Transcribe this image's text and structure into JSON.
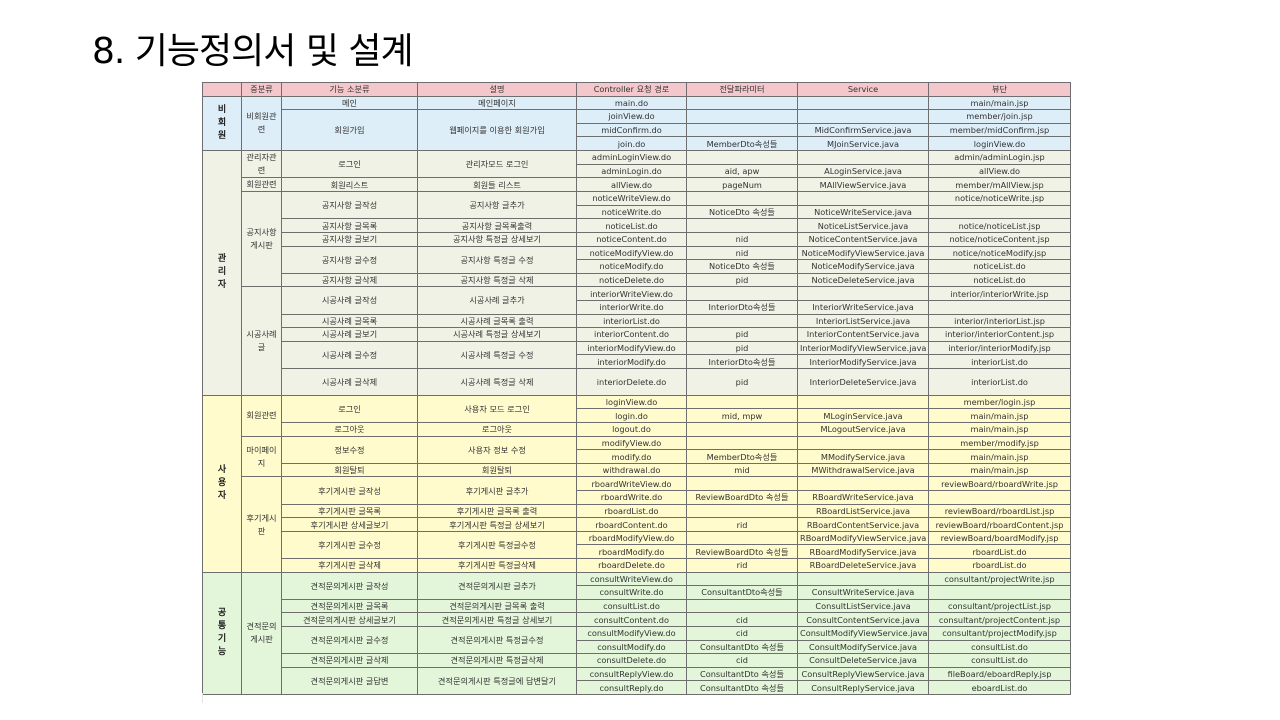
{
  "title": "8. 기능정의서 및 설계",
  "headers": [
    "",
    "중분류",
    "기능 소분류",
    "설명",
    "Controller 요청 경로",
    "전달파라미터",
    "Service",
    "뷰단"
  ],
  "colors": {
    "header": "#f4c7cc",
    "비회원": "#deeef8",
    "관리자": "#f1f2e6",
    "사용자": "#fffbcc",
    "공통기능": "#e3f6d9"
  },
  "groups": [
    {
      "label": "비회원",
      "color": "#deeef8",
      "subs": [
        {
          "label": "비회원관련",
          "funcs": [
            {
              "name": "메인",
              "desc": "메인페이지",
              "reqs": [
                {
                  "c": "main.do",
                  "p": "",
                  "s": "",
                  "v": "main/main.jsp"
                }
              ]
            },
            {
              "name": "회원가입",
              "desc": "웹페이지를 이용한 회원가입",
              "reqs": [
                {
                  "c": "joinView.do",
                  "p": "",
                  "s": "",
                  "v": "member/join.jsp"
                },
                {
                  "c": "midConfirm.do",
                  "p": "",
                  "s": "MidConfirmService.java",
                  "v": "member/midConfirm.jsp"
                },
                {
                  "c": "join.do",
                  "p": "MemberDto속성들",
                  "s": "MJoinService.java",
                  "v": "loginView.do"
                }
              ]
            }
          ]
        }
      ]
    },
    {
      "label": "관리자",
      "color": "#f1f2e6",
      "subs": [
        {
          "label": "관리자관련",
          "funcs": [
            {
              "name": "로그인",
              "desc": "관리자모드 로그인",
              "reqs": [
                {
                  "c": "adminLoginView.do",
                  "p": "",
                  "s": "",
                  "v": "admin/adminLogin.jsp"
                },
                {
                  "c": "adminLogin.do",
                  "p": "aid, apw",
                  "s": "ALoginService.java",
                  "v": "allView.do"
                }
              ]
            }
          ]
        },
        {
          "label": "회원관련",
          "funcs": [
            {
              "name": "회원리스트",
              "desc": "회원들 리스트",
              "reqs": [
                {
                  "c": "allView.do",
                  "p": "pageNum",
                  "s": "MAllViewService.java",
                  "v": "member/mAllView.jsp"
                }
              ]
            }
          ]
        },
        {
          "label": "공지사항게시판",
          "funcs": [
            {
              "name": "공지사항 글작성",
              "desc": "공지사항 글추가",
              "reqs": [
                {
                  "c": "noticeWriteView.do",
                  "p": "",
                  "s": "",
                  "v": "notice/noticeWrite.jsp"
                },
                {
                  "c": "noticeWrite.do",
                  "p": "NoticeDto 속성들",
                  "s": "NoticeWriteService.java",
                  "v": ""
                }
              ]
            },
            {
              "name": "공지사항 글목록",
              "desc": "공지사항 글목록출력",
              "reqs": [
                {
                  "c": "noticeList.do",
                  "p": "",
                  "s": "NoticeListService.java",
                  "v": "notice/noticeList.jsp"
                }
              ]
            },
            {
              "name": "공지사항 글보기",
              "desc": "공지사항 특정글 상세보기",
              "reqs": [
                {
                  "c": "noticeContent.do",
                  "p": "nid",
                  "s": "NoticeContentService.java",
                  "v": "notice/noticeContent.jsp"
                }
              ]
            },
            {
              "name": "공지사항 글수정",
              "desc": "공지사항 특정글 수정",
              "reqs": [
                {
                  "c": "noticeModifyView.do",
                  "p": "nid",
                  "s": "NoticeModifyViewService.java",
                  "v": "notice/noticeModify.jsp"
                },
                {
                  "c": "noticeModify.do",
                  "p": "NoticeDto 속성들",
                  "s": "NoticeModifyService.java",
                  "v": "noticeList.do"
                }
              ]
            },
            {
              "name": "공지사항 글삭제",
              "desc": "공지사항 특정글 삭제",
              "reqs": [
                {
                  "c": "noticeDelete.do",
                  "p": "pid",
                  "s": "NoticeDeleteService.java",
                  "v": "noticeList.do"
                }
              ]
            }
          ]
        },
        {
          "label": "시공사례글",
          "funcs": [
            {
              "name": "시공사례 글작성",
              "desc": "시공사례 글추가",
              "reqs": [
                {
                  "c": "interiorWriteView.do",
                  "p": "",
                  "s": "",
                  "v": "interior/interiorWrite.jsp"
                },
                {
                  "c": "interiorWrite.do",
                  "p": "InteriorDto속성들",
                  "s": "InteriorWriteService.java",
                  "v": ""
                }
              ]
            },
            {
              "name": "시공사례 글목록",
              "desc": "시공사례 글목록 출력",
              "reqs": [
                {
                  "c": "interiorList.do",
                  "p": "",
                  "s": "InteriorListService.java",
                  "v": "interior/interiorList.jsp"
                }
              ]
            },
            {
              "name": "시공사례 글보기",
              "desc": "시공사례 특정글 상세보기",
              "reqs": [
                {
                  "c": "interiorContent.do",
                  "p": "pid",
                  "s": "InteriorContentService.java",
                  "v": "interior/interiorContent.jsp"
                }
              ]
            },
            {
              "name": "시공사례 글수정",
              "desc": "시공사례 특정글 수정",
              "reqs": [
                {
                  "c": "interiorModifyView.do",
                  "p": "pid",
                  "s": "InteriorModifyViewService.java",
                  "v": "interior/interiorModify.jsp"
                },
                {
                  "c": "interiorModify.do",
                  "p": "InteriorDto속성들",
                  "s": "InteriorModifyService.java",
                  "v": "interiorList.do"
                }
              ]
            },
            {
              "name": "시공사례 글삭제",
              "desc": "시공사례 특정글 삭제",
              "reqs": [
                {
                  "c": "interiorDelete.do",
                  "p": "pid",
                  "s": "InteriorDeleteService.java",
                  "v": "interiorList.do"
                }
              ]
            }
          ]
        }
      ]
    },
    {
      "label": "사용자",
      "color": "#fffbcc",
      "subs": [
        {
          "label": "회원관련",
          "funcs": [
            {
              "name": "로그인",
              "desc": "사용자 모드 로그인",
              "reqs": [
                {
                  "c": "loginView.do",
                  "p": "",
                  "s": "",
                  "v": "member/login.jsp"
                },
                {
                  "c": "login.do",
                  "p": "mid, mpw",
                  "s": "MLoginService.java",
                  "v": "main/main.jsp"
                }
              ]
            },
            {
              "name": "로그아웃",
              "desc": "로그아웃",
              "reqs": [
                {
                  "c": "logout.do",
                  "p": "",
                  "s": "MLogoutService.java",
                  "v": "main/main.jsp"
                }
              ]
            }
          ]
        },
        {
          "label": "마이페이지",
          "funcs": [
            {
              "name": "정보수정",
              "desc": "사용자 정보 수정",
              "reqs": [
                {
                  "c": "modifyView.do",
                  "p": "",
                  "s": "",
                  "v": "member/modify.jsp"
                },
                {
                  "c": "modify.do",
                  "p": "MemberDto속성들",
                  "s": "MModifyService.java",
                  "v": "main/main.jsp"
                }
              ]
            },
            {
              "name": "회원탈퇴",
              "desc": "회원탈퇴",
              "reqs": [
                {
                  "c": "withdrawal.do",
                  "p": "mid",
                  "s": "MWithdrawalService.java",
                  "v": "main/main.jsp"
                }
              ]
            }
          ]
        },
        {
          "label": "후기게시판",
          "funcs": [
            {
              "name": "후기게시판 글작성",
              "desc": "후기게시판 글추가",
              "reqs": [
                {
                  "c": "rboardWriteView.do",
                  "p": "",
                  "s": "",
                  "v": "reviewBoard/rboardWrite.jsp"
                },
                {
                  "c": "rboardWrite.do",
                  "p": "ReviewBoardDto 속성들",
                  "s": "RBoardWriteService.java",
                  "v": ""
                }
              ]
            },
            {
              "name": "후기게시판 글목록",
              "desc": "후기게시판 글목록 출력",
              "reqs": [
                {
                  "c": "rboardList.do",
                  "p": "",
                  "s": "RBoardListService.java",
                  "v": "reviewBoard/rboardList.jsp"
                }
              ]
            },
            {
              "name": "후기게시판 상세글보기",
              "desc": "후기게시판 특정글 상세보기",
              "reqs": [
                {
                  "c": "rboardContent.do",
                  "p": "rid",
                  "s": "RBoardContentService.java",
                  "v": "reviewBoard/rboardContent.jsp"
                }
              ]
            },
            {
              "name": "후기게시판 글수정",
              "desc": "후기게시판 특정글수정",
              "reqs": [
                {
                  "c": "rboardModifyView.do",
                  "p": "",
                  "s": "RBoardModifyViewService.java",
                  "v": "reviewBoard/boardModify.jsp"
                },
                {
                  "c": "rboardModify.do",
                  "p": "ReviewBoardDto 속성들",
                  "s": "RBoardModifyService.java",
                  "v": "rboardList.do"
                }
              ]
            },
            {
              "name": "후기게시판 글삭제",
              "desc": "후기게시판 특정글삭제",
              "reqs": [
                {
                  "c": "rboardDelete.do",
                  "p": "rid",
                  "s": "RBoardDeleteService.java",
                  "v": "rboardList.do"
                }
              ]
            }
          ]
        }
      ]
    },
    {
      "label": "공통기능",
      "color": "#e3f6d9",
      "subs": [
        {
          "label": "견적문의게시판",
          "funcs": [
            {
              "name": "견적문의게시판 글작성",
              "desc": "견적문의게시판 글추가",
              "reqs": [
                {
                  "c": "consultWriteView.do",
                  "p": "",
                  "s": "",
                  "v": "consultant/projectWrite.jsp"
                },
                {
                  "c": "consultWrite.do",
                  "p": "ConsultantDto속성들",
                  "s": "ConsultWriteService.java",
                  "v": ""
                }
              ]
            },
            {
              "name": "견적문의게시판 글목록",
              "desc": "견적문의게시판 글목록 출력",
              "reqs": [
                {
                  "c": "consultList.do",
                  "p": "",
                  "s": "ConsultListService.java",
                  "v": "consultant/projectList.jsp"
                }
              ]
            },
            {
              "name": "견적문의게시판 상세글보기",
              "desc": "견적문의게시판 특정글 상세보기",
              "reqs": [
                {
                  "c": "consultContent.do",
                  "p": "cid",
                  "s": "ConsultContentService.java",
                  "v": "consultant/projectContent.jsp"
                }
              ]
            },
            {
              "name": "견적문의게시판 글수정",
              "desc": "견적문의게시판 특정글수정",
              "reqs": [
                {
                  "c": "consultModifyView.do",
                  "p": "cid",
                  "s": "ConsultModifyViewService.java",
                  "v": "consultant/projectModify.jsp"
                },
                {
                  "c": "consultModify.do",
                  "p": "ConsultantDto 속성들",
                  "s": "ConsultModifyService.java",
                  "v": "consultList.do"
                }
              ]
            },
            {
              "name": "견적문의게시판 글삭제",
              "desc": "견적문의게시판 특정글삭제",
              "reqs": [
                {
                  "c": "consultDelete.do",
                  "p": "cid",
                  "s": "ConsultDeleteService.java",
                  "v": "consultList.do"
                }
              ]
            },
            {
              "name": "견적문의게시판 글답변",
              "desc": "견적문의게시판 특정글에 답변달기",
              "reqs": [
                {
                  "c": "consultReplyView.do",
                  "p": "ConsultantDto 속성들",
                  "s": "ConsultReplyViewService.java",
                  "v": "fileBoard/eboardReply.jsp"
                },
                {
                  "c": "consultReply.do",
                  "p": "ConsultantDto 속성들",
                  "s": "ConsultReplyService.java",
                  "v": "eboardList.do"
                }
              ]
            }
          ]
        }
      ]
    }
  ]
}
